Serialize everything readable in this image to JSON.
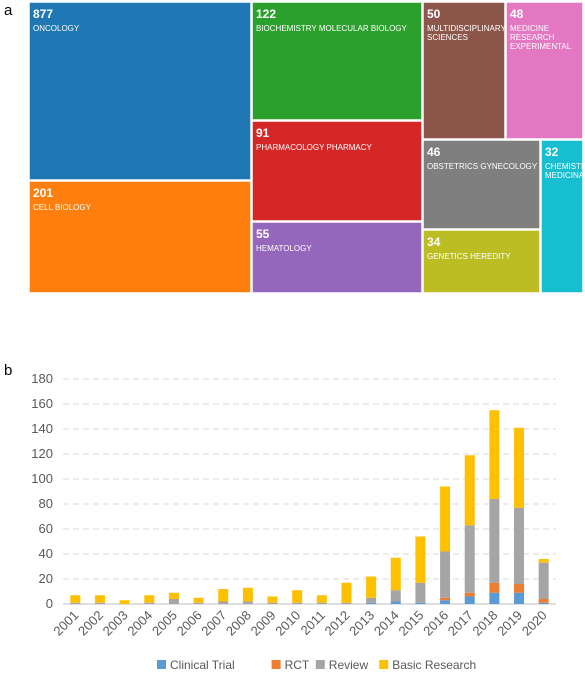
{
  "panels": {
    "a": "a",
    "b": "b"
  },
  "chart_data": [
    {
      "type": "treemap",
      "items": [
        {
          "value": "877",
          "label": "ONCOLOGY",
          "color": "#1f77b4"
        },
        {
          "value": "201",
          "label": "CELL BIOLOGY",
          "color": "#ff7f0e"
        },
        {
          "value": "122",
          "label": "BIOCHEMISTRY MOLECULAR BIOLOGY",
          "color": "#2ca02c"
        },
        {
          "value": "91",
          "label": "PHARMACOLOGY PHARMACY",
          "color": "#d62728"
        },
        {
          "value": "55",
          "label": "HEMATOLOGY",
          "color": "#9467bd"
        },
        {
          "value": "50",
          "label": "MULTIDISCIPLINARY SCIENCES",
          "color": "#8c564b"
        },
        {
          "value": "48",
          "label": "MEDICINE RESEARCH EXPERIMENTAL",
          "color": "#e377c2"
        },
        {
          "value": "46",
          "label": "OBSTETRICS GYNECOLOGY",
          "color": "#7f7f7f"
        },
        {
          "value": "34",
          "label": "GENETICS HEREDITY",
          "color": "#bcbd22"
        },
        {
          "value": "32",
          "label": "CHEMISTRY MEDICINAL",
          "color": "#17becf"
        }
      ]
    },
    {
      "type": "bar",
      "stacked": true,
      "categories": [
        "2001",
        "2002",
        "2003",
        "2004",
        "2005",
        "2006",
        "2007",
        "2008",
        "2009",
        "2010",
        "2011",
        "2012",
        "2013",
        "2014",
        "2015",
        "2016",
        "2017",
        "2018",
        "2019",
        "2020"
      ],
      "series": [
        {
          "name": "Clinical Trial",
          "color": "#5b9bd5",
          "values": [
            0,
            0,
            0,
            0,
            0,
            0,
            0,
            0,
            0,
            0,
            0,
            0,
            1,
            2,
            1,
            3,
            6,
            9,
            9,
            1
          ]
        },
        {
          "name": "RCT",
          "color": "#ed7d31",
          "values": [
            0,
            0,
            0,
            0,
            0,
            0,
            0,
            0,
            0,
            0,
            0,
            0,
            0,
            0,
            0,
            2,
            3,
            8,
            7,
            3
          ]
        },
        {
          "name": "Review",
          "color": "#a5a5a5",
          "values": [
            1,
            1,
            0,
            1,
            4,
            1,
            2,
            2,
            1,
            1,
            1,
            1,
            4,
            9,
            16,
            37,
            54,
            67,
            61,
            29
          ]
        },
        {
          "name": "Basic Research",
          "color": "#ffc000",
          "values": [
            6,
            6,
            3,
            6,
            5,
            4,
            10,
            11,
            5,
            10,
            6,
            16,
            17,
            26,
            37,
            52,
            56,
            71,
            64,
            3
          ]
        }
      ],
      "ylim": [
        0,
        180
      ],
      "yticks": [
        0,
        20,
        40,
        60,
        80,
        100,
        120,
        140,
        160,
        180
      ],
      "grid": true,
      "legend": "bottom"
    }
  ]
}
